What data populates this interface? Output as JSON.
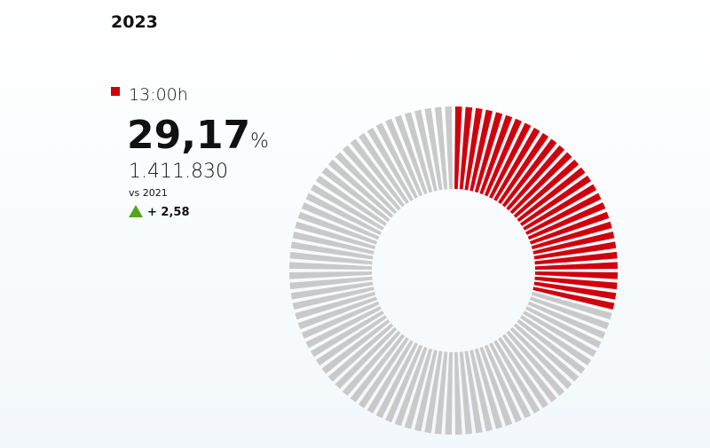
{
  "chart_data": {
    "type": "donut",
    "title": "2023",
    "series_name": "13:00h",
    "values": [
      29.17
    ],
    "value_labels": [
      "29,17"
    ],
    "unit": "%",
    "count": "1.411.830",
    "comparison": "vs 2021",
    "change": 2.58,
    "change_label": "+ 2,58",
    "color": "#d0000d",
    "track_color": "#c9c9c9",
    "change_color": "#55a51c"
  }
}
